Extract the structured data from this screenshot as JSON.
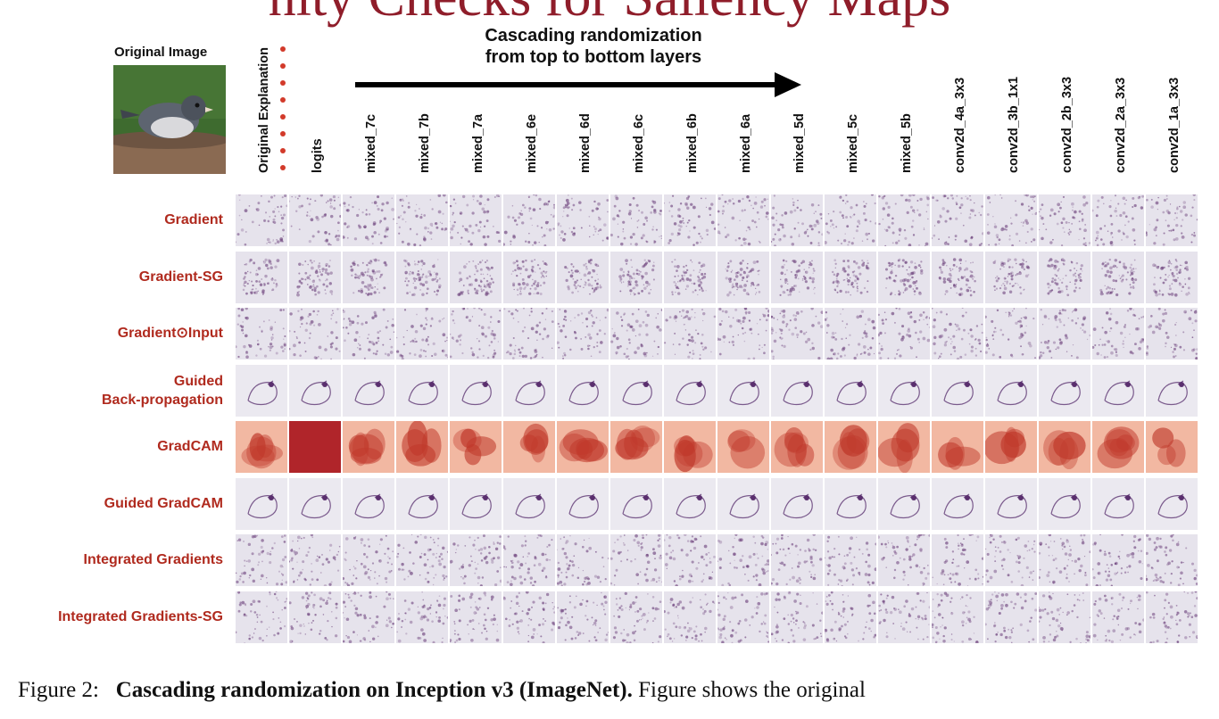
{
  "page_title": "nity Checks for Saliency Maps",
  "original_image_label": "Original Image",
  "arrow_label_line1": "Cascading randomization",
  "arrow_label_line2": "from top to bottom layers",
  "columns": [
    "Original Explanation",
    "logits",
    "mixed_7c",
    "mixed_7b",
    "mixed_7a",
    "mixed_6e",
    "mixed_6d",
    "mixed_6c",
    "mixed_6b",
    "mixed_6a",
    "mixed_5d",
    "mixed_5c",
    "mixed_5b",
    "conv2d_4a_3x3",
    "conv2d_3b_1x1",
    "conv2d_2b_3x3",
    "conv2d_2a_3x3",
    "conv2d_1a_3x3"
  ],
  "rows": [
    {
      "label": "Gradient",
      "style": "speckle"
    },
    {
      "label": "Gradient-SG",
      "style": "blob"
    },
    {
      "label": "Gradient⊙Input",
      "style": "speckle"
    },
    {
      "label": "Guided Back-propagation",
      "style": "sketch"
    },
    {
      "label": "GradCAM",
      "style": "heat"
    },
    {
      "label": "Guided GradCAM",
      "style": "sketch"
    },
    {
      "label": "Integrated Gradients",
      "style": "speckle"
    },
    {
      "label": "Integrated Gradients-SG",
      "style": "speckle"
    }
  ],
  "caption": {
    "prefix": "Figure 2:",
    "bold": "Cascading randomization on Inception v3 (ImageNet).",
    "rest": "Figure shows the original"
  },
  "colors": {
    "title": "#8f1d2a",
    "row_label": "#b02a1e",
    "saliency": "#6b3f7a",
    "heat": "#c0392b"
  }
}
